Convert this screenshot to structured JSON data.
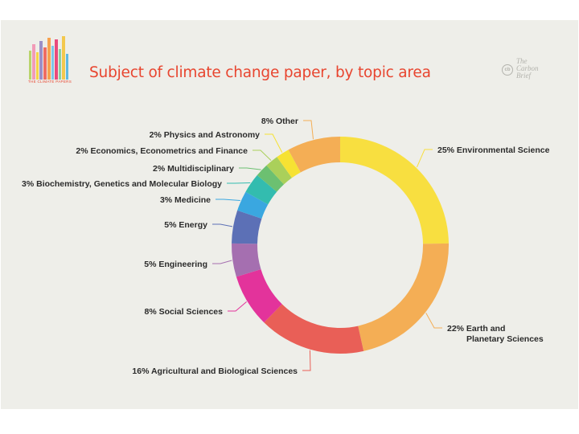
{
  "header": {
    "title": "Subject of climate change paper, by topic area",
    "logo_text": "THE CLIMATE PAPERS",
    "brand_mark": "cb",
    "brand_lines": [
      "The",
      "Carbon",
      "Brief"
    ]
  },
  "chart_data": {
    "type": "pie",
    "donut": true,
    "title": "Subject of climate change paper, by topic area",
    "start_angle_deg": 0,
    "direction": "clockwise",
    "slices": [
      {
        "label": "25% Environmental Science",
        "value": 25,
        "color": "#f8df40"
      },
      {
        "label": "22% Earth and Planetary Sciences",
        "value": 22,
        "color": "#f4ae55"
      },
      {
        "label": "16% Agricultural and Biological Sciences",
        "value": 16,
        "color": "#e95f57"
      },
      {
        "label": "8% Social Sciences",
        "value": 8,
        "color": "#e3339b"
      },
      {
        "label": "5% Engineering",
        "value": 5,
        "color": "#a56fb0"
      },
      {
        "label": "5% Energy",
        "value": 5,
        "color": "#5c70b6"
      },
      {
        "label": "3% Medicine",
        "value": 3,
        "color": "#3aa7e0"
      },
      {
        "label": "3% Biochemistry, Genetics and Molecular Biology",
        "value": 3,
        "color": "#33bcaf"
      },
      {
        "label": "2% Multidisciplinary",
        "value": 2,
        "color": "#6cc071"
      },
      {
        "label": "2% Economics, Econometrics and Finance",
        "value": 2,
        "color": "#aad05a"
      },
      {
        "label": "2% Physics and Astronomy",
        "value": 2,
        "color": "#f6e233"
      },
      {
        "label": "8% Other",
        "value": 8,
        "color": "#f4ae55"
      }
    ]
  }
}
